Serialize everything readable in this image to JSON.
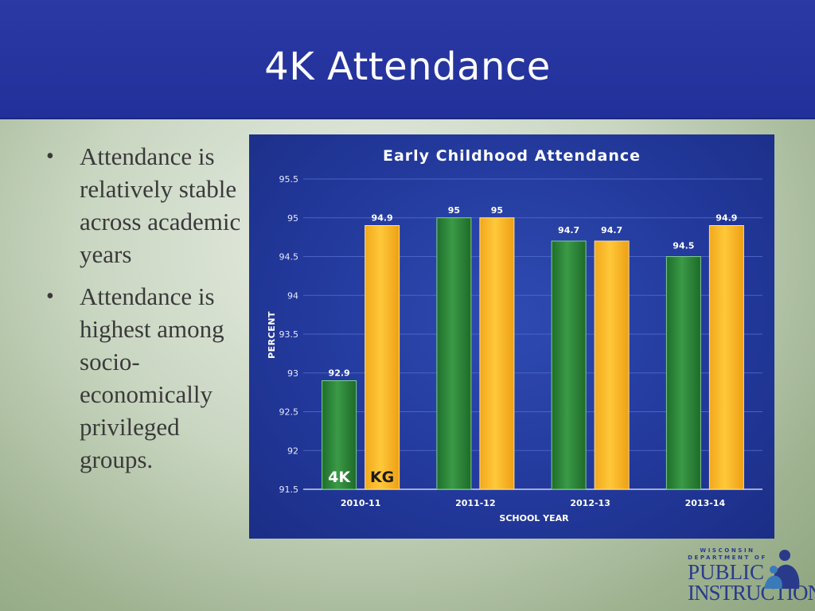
{
  "slide": {
    "title": "4K Attendance",
    "bullets": [
      "Attendance is relatively stable across academic years",
      "Attendance is highest among socio-economically privileged groups."
    ]
  },
  "logo": {
    "line1": "WISCONSIN",
    "line2": "DEPARTMENT OF",
    "line3": "PUBLIC",
    "line4": "INSTRUCTION"
  },
  "colors": {
    "series_4k": "#2f8a3c",
    "series_kg": "#ffba2a",
    "panel_bg": "#22389a",
    "header_bg": "#2433a0"
  },
  "chart_data": {
    "type": "bar",
    "title": "Early Childhood Attendance",
    "xlabel": "SCHOOL YEAR",
    "ylabel": "PERCENT",
    "categories": [
      "2010-11",
      "2011-12",
      "2012-13",
      "2013-14"
    ],
    "series": [
      {
        "name": "4K",
        "values": [
          92.9,
          95,
          94.7,
          94.5
        ]
      },
      {
        "name": "KG",
        "values": [
          94.9,
          95,
          94.7,
          94.9
        ]
      }
    ],
    "ylim": [
      91.5,
      95.5
    ],
    "yticks": [
      91.5,
      92,
      92.5,
      93,
      93.5,
      94,
      94.5,
      95,
      95.5
    ],
    "grid": true,
    "legend": "bottom-left inside"
  }
}
